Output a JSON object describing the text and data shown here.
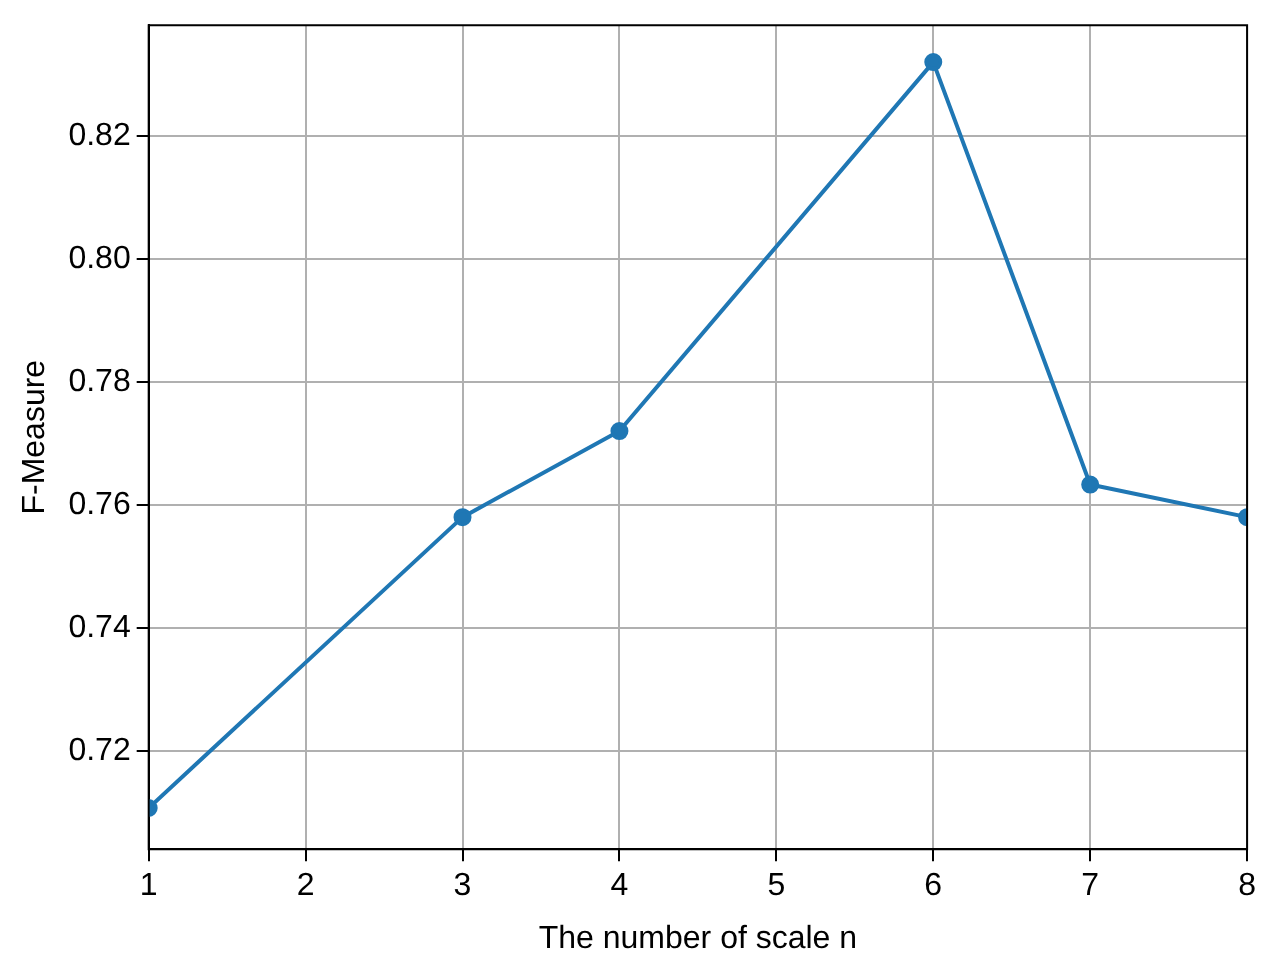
{
  "chart_data": {
    "type": "line",
    "xlabel": "The number of scale n",
    "ylabel": "F-Measure",
    "x": [
      1,
      3,
      4,
      6,
      7,
      8
    ],
    "series": [
      {
        "color": "#1f77b4",
        "values": [
          0.7107,
          0.758,
          0.772,
          0.832,
          0.7633,
          0.758
        ]
      }
    ],
    "xlim": [
      1,
      8
    ],
    "xticks": [
      1,
      2,
      3,
      4,
      5,
      6,
      7,
      8
    ],
    "ylim": [
      0.704,
      0.838
    ],
    "yticks": [
      {
        "value": 0.72,
        "label": "0.72"
      },
      {
        "value": 0.74,
        "label": "0.74"
      },
      {
        "value": 0.76,
        "label": "0.76"
      },
      {
        "value": 0.78,
        "label": "0.78"
      },
      {
        "value": 0.8,
        "label": "0.80"
      },
      {
        "value": 0.82,
        "label": "0.82"
      }
    ],
    "grid": true,
    "legend": false,
    "marker": "circle",
    "line_style": "solid"
  }
}
